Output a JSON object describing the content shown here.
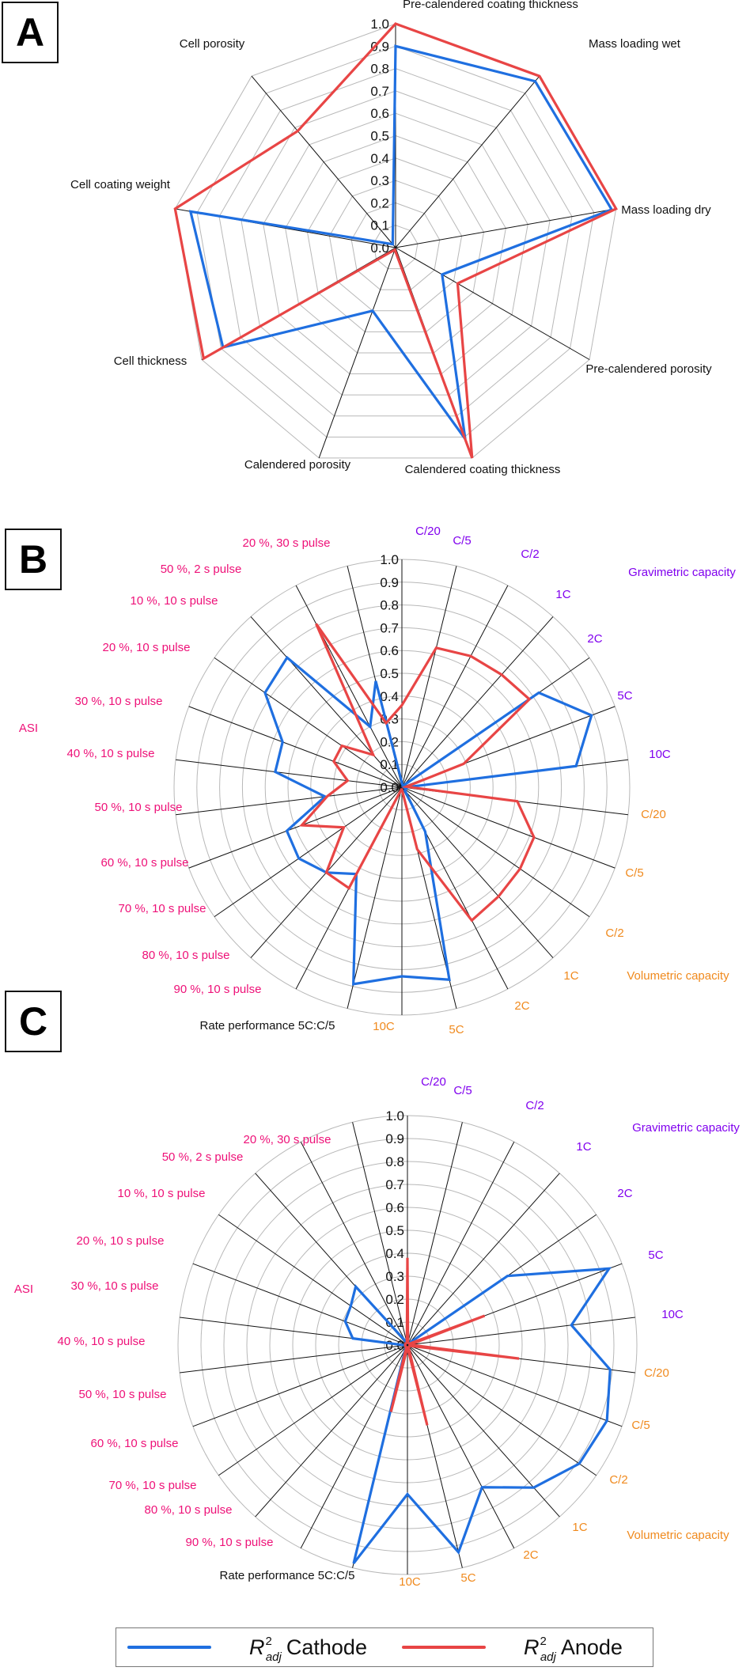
{
  "colors": {
    "cathode": "#1f6fe0",
    "anode": "#e84545",
    "gravimetric": "#8000ee",
    "volumetric": "#f08a1e",
    "pulse": "#ee1178",
    "rate": "#111111",
    "axis": "#111111",
    "grid": "#b8b8b8"
  },
  "legend": {
    "items": [
      {
        "r": "R",
        "sup": "2",
        "sub": "adj",
        "label": "Cathode"
      },
      {
        "r": "R",
        "sup": "2",
        "sub": "adj",
        "label": "Anode"
      }
    ]
  },
  "chart_data": [
    {
      "panel": "A",
      "type": "radar",
      "grid": "polygon",
      "rlim": [
        0,
        1
      ],
      "ticks": [
        "0.0",
        "0.1",
        "0.2",
        "0.3",
        "0.4",
        "0.5",
        "0.6",
        "0.7",
        "0.8",
        "0.9",
        "1.0"
      ],
      "categories": [
        {
          "label": "Pre-calendered coating thickness",
          "group": "rate"
        },
        {
          "label": "Mass loading wet",
          "group": "rate"
        },
        {
          "label": "Mass loading dry",
          "group": "rate"
        },
        {
          "label": "Pre-calendered porosity",
          "group": "rate"
        },
        {
          "label": "Calendered coating thickness",
          "group": "rate"
        },
        {
          "label": "Calendered porosity",
          "group": "rate"
        },
        {
          "label": "Cell thickness",
          "group": "rate"
        },
        {
          "label": "Cell coating weight",
          "group": "rate"
        },
        {
          "label": "Cell porosity",
          "group": "rate"
        }
      ],
      "series": [
        {
          "name": "R2adj Cathode",
          "color_key": "cathode",
          "values": [
            0.9,
            0.97,
            0.98,
            0.24,
            0.91,
            0.3,
            0.89,
            0.93,
            0.02
          ]
        },
        {
          "name": "R2adj Anode",
          "color_key": "anode",
          "values": [
            1.0,
            1.0,
            1.0,
            0.32,
            1.0,
            0.01,
            0.99,
            1.0,
            0.68
          ]
        }
      ]
    },
    {
      "panel": "B",
      "type": "radar",
      "grid": "circle",
      "rlim": [
        0,
        1
      ],
      "ticks": [
        "0.0",
        "0.1",
        "0.2",
        "0.3",
        "0.4",
        "0.5",
        "0.6",
        "0.7",
        "0.8",
        "0.9",
        "1.0"
      ],
      "group_labels": [
        {
          "label": "Gravimetric capacity",
          "group": "gravimetric"
        },
        {
          "label": "Volumetric capacity",
          "group": "volumetric"
        },
        {
          "label": "ASI",
          "group": "pulse"
        }
      ],
      "categories": [
        {
          "label": "C/20",
          "group": "gravimetric"
        },
        {
          "label": "C/5",
          "group": "gravimetric"
        },
        {
          "label": "C/2",
          "group": "gravimetric"
        },
        {
          "label": "1C",
          "group": "gravimetric"
        },
        {
          "label": "2C",
          "group": "gravimetric"
        },
        {
          "label": "5C",
          "group": "gravimetric"
        },
        {
          "label": "10C",
          "group": "gravimetric"
        },
        {
          "label": "C/20",
          "group": "volumetric"
        },
        {
          "label": "C/5",
          "group": "volumetric"
        },
        {
          "label": "C/2",
          "group": "volumetric"
        },
        {
          "label": "1C",
          "group": "volumetric"
        },
        {
          "label": "2C",
          "group": "volumetric"
        },
        {
          "label": "5C",
          "group": "volumetric"
        },
        {
          "label": "10C",
          "group": "volumetric"
        },
        {
          "label": "Rate performance 5C:C/5",
          "group": "rate"
        },
        {
          "label": "90 %, 10 s pulse",
          "group": "pulse"
        },
        {
          "label": "80 %, 10 s pulse",
          "group": "pulse"
        },
        {
          "label": "70 %, 10 s pulse",
          "group": "pulse"
        },
        {
          "label": "60 %, 10 s pulse",
          "group": "pulse"
        },
        {
          "label": "50 %, 10 s pulse",
          "group": "pulse"
        },
        {
          "label": "40 %, 10 s pulse",
          "group": "pulse"
        },
        {
          "label": "30 %, 10 s pulse",
          "group": "pulse"
        },
        {
          "label": "20 %, 10 s pulse",
          "group": "pulse"
        },
        {
          "label": "10 %, 10 s pulse",
          "group": "pulse"
        },
        {
          "label": "50 %, 2 s pulse",
          "group": "pulse"
        },
        {
          "label": "20 %, 30 s pulse",
          "group": "pulse"
        }
      ],
      "series": [
        {
          "name": "R2adj Cathode",
          "color_key": "cathode",
          "values": [
            0.02,
            0.01,
            0.01,
            0.01,
            0.73,
            0.89,
            0.77,
            0.01,
            0.02,
            0.02,
            0.02,
            0.22,
            0.87,
            0.83,
            0.89,
            0.43,
            0.5,
            0.55,
            0.54,
            0.34,
            0.56,
            0.56,
            0.73,
            0.76,
            0.3,
            0.48
          ]
        },
        {
          "name": "R2adj Anode",
          "color_key": "anode",
          "values": [
            0.36,
            0.63,
            0.65,
            0.66,
            0.68,
            0.29,
            0.02,
            0.51,
            0.62,
            0.63,
            0.64,
            0.66,
            0.28,
            0.01,
            0.01,
            0.5,
            0.5,
            0.31,
            0.47,
            0.33,
            0.24,
            0.32,
            0.32,
            0.19,
            0.81,
            0.29
          ]
        }
      ]
    },
    {
      "panel": "C",
      "type": "radar",
      "grid": "circle",
      "rlim": [
        0,
        1
      ],
      "ticks": [
        "0.0",
        "0.1",
        "0.2",
        "0.3",
        "0.4",
        "0.5",
        "0.6",
        "0.7",
        "0.8",
        "0.9",
        "1.0"
      ],
      "group_labels": [
        {
          "label": "Gravimetric capacity",
          "group": "gravimetric"
        },
        {
          "label": "Volumetric capacity",
          "group": "volumetric"
        },
        {
          "label": "ASI",
          "group": "pulse"
        }
      ],
      "categories": [
        {
          "label": "C/20",
          "group": "gravimetric"
        },
        {
          "label": "C/5",
          "group": "gravimetric"
        },
        {
          "label": "C/2",
          "group": "gravimetric"
        },
        {
          "label": "1C",
          "group": "gravimetric"
        },
        {
          "label": "2C",
          "group": "gravimetric"
        },
        {
          "label": "5C",
          "group": "gravimetric"
        },
        {
          "label": "10C",
          "group": "gravimetric"
        },
        {
          "label": "C/20",
          "group": "volumetric"
        },
        {
          "label": "C/5",
          "group": "volumetric"
        },
        {
          "label": "C/2",
          "group": "volumetric"
        },
        {
          "label": "1C",
          "group": "volumetric"
        },
        {
          "label": "2C",
          "group": "volumetric"
        },
        {
          "label": "5C",
          "group": "volumetric"
        },
        {
          "label": "10C",
          "group": "volumetric"
        },
        {
          "label": "Rate performance 5C:C/5",
          "group": "rate"
        },
        {
          "label": "90 %, 10 s pulse",
          "group": "pulse"
        },
        {
          "label": "80 %, 10 s pulse",
          "group": "pulse"
        },
        {
          "label": "70 %, 10 s pulse",
          "group": "pulse"
        },
        {
          "label": "60 %, 10 s pulse",
          "group": "pulse"
        },
        {
          "label": "50 %, 10 s pulse",
          "group": "pulse"
        },
        {
          "label": "40 %, 10 s pulse",
          "group": "pulse"
        },
        {
          "label": "30 %, 10 s pulse",
          "group": "pulse"
        },
        {
          "label": "20 %, 10 s pulse",
          "group": "pulse"
        },
        {
          "label": "10 %, 10 s pulse",
          "group": "pulse"
        },
        {
          "label": "50 %, 2 s pulse",
          "group": "pulse"
        },
        {
          "label": "20 %, 30 s pulse",
          "group": "pulse"
        }
      ],
      "series": [
        {
          "name": "R2adj Cathode",
          "color_key": "cathode",
          "values": [
            0.01,
            0.01,
            0.01,
            0.01,
            0.53,
            0.94,
            0.72,
            0.89,
            0.93,
            0.91,
            0.83,
            0.7,
            0.93,
            0.65,
            0.98,
            0.02,
            0.01,
            0.01,
            0.01,
            0.01,
            0.24,
            0.29,
            0.3,
            0.34,
            0.02,
            0.01
          ]
        },
        {
          "name": "R2adj Anode",
          "color_key": "anode",
          "values": [
            0.38,
            0.01,
            0.01,
            0.01,
            0.01,
            0.36,
            0.01,
            0.49,
            0.01,
            0.01,
            0.01,
            0.01,
            0.36,
            0.01,
            0.3,
            0.01,
            0.01,
            0.01,
            0.01,
            0.01,
            0.01,
            0.01,
            0.01,
            0.01,
            0.01,
            0.01
          ]
        }
      ]
    }
  ]
}
